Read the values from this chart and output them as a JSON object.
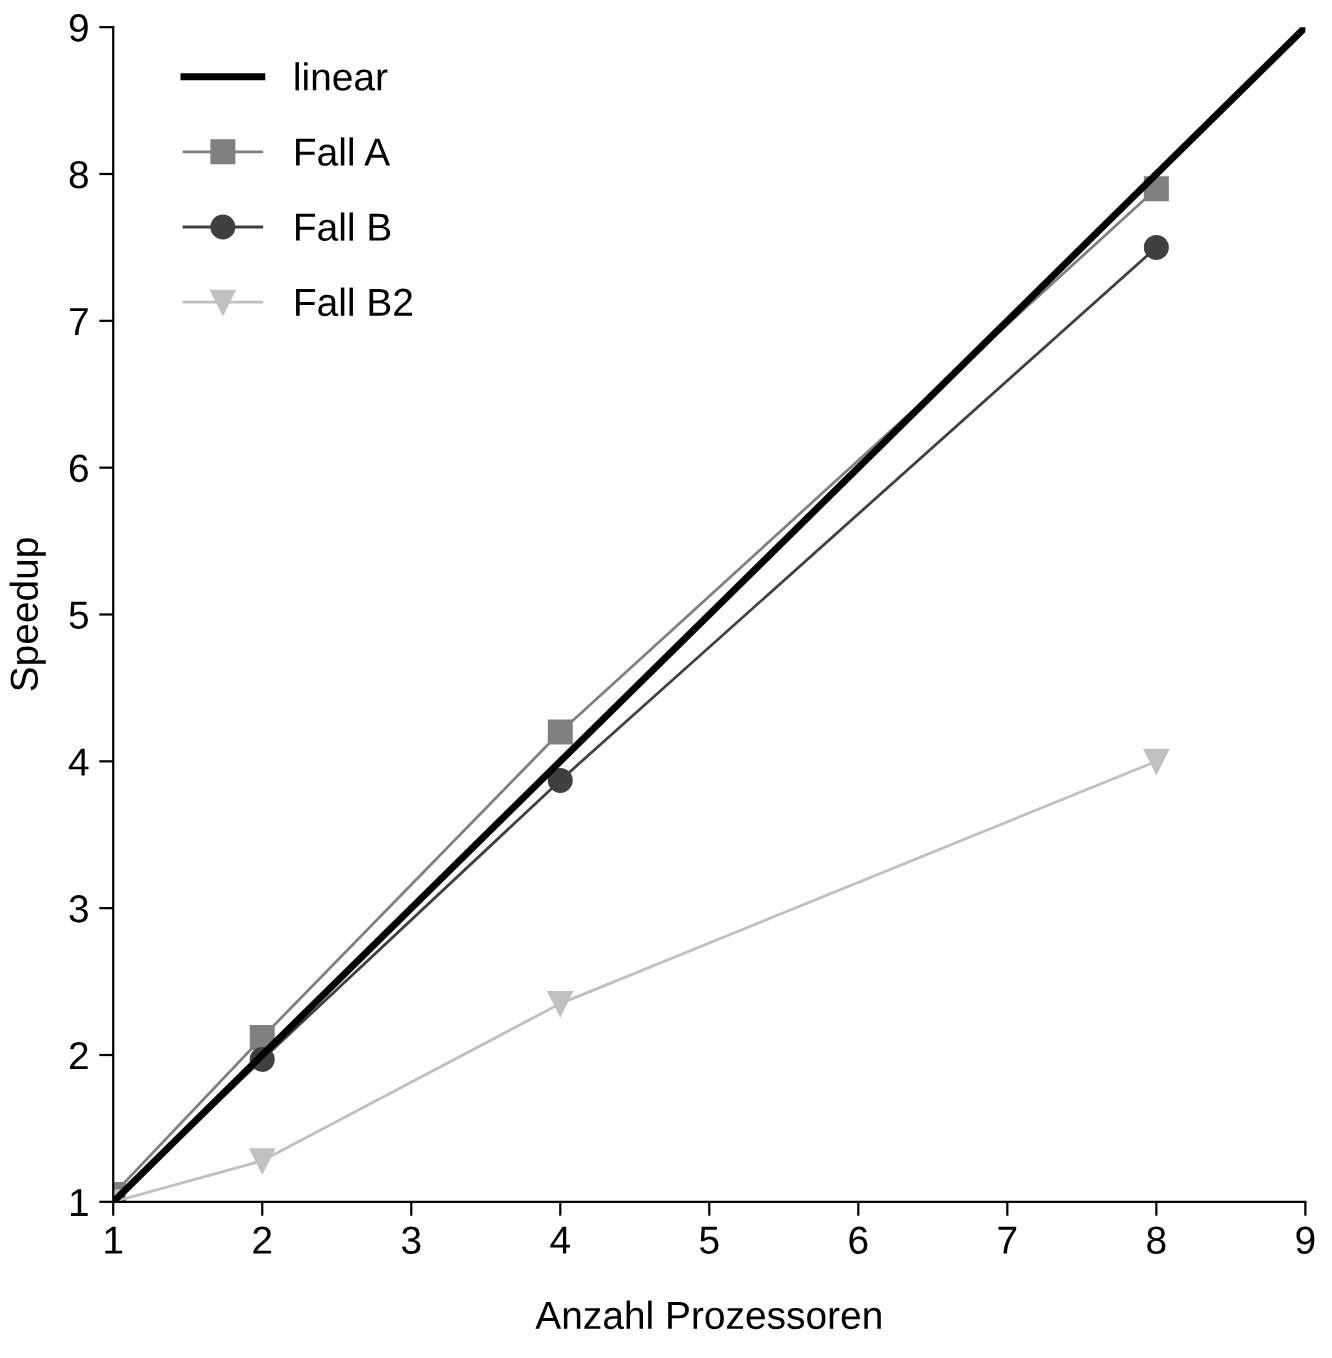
{
  "chart_data": {
    "type": "line",
    "xlabel": "Anzahl Prozessoren",
    "ylabel": "Speedup",
    "xlim": [
      1,
      9
    ],
    "ylim": [
      1,
      9
    ],
    "xticks": [
      1,
      2,
      3,
      4,
      5,
      6,
      7,
      8,
      9
    ],
    "yticks": [
      1,
      2,
      3,
      4,
      5,
      6,
      7,
      8,
      9
    ],
    "grid": false,
    "legend": "top left",
    "series": [
      {
        "name": "linear",
        "color": "#000000",
        "x": [
          1,
          9
        ],
        "values": [
          1,
          9
        ],
        "marker": "none"
      },
      {
        "name": "Fall A",
        "color": "#808080",
        "x": [
          1,
          2,
          4,
          8
        ],
        "values": [
          1.05,
          2.12,
          4.2,
          7.9
        ],
        "marker": "square"
      },
      {
        "name": "Fall B",
        "color": "#404040",
        "x": [
          1,
          2,
          4,
          8
        ],
        "values": [
          1.0,
          1.97,
          3.87,
          7.5
        ],
        "marker": "circle"
      },
      {
        "name": "Fall B2",
        "color": "#c0c0c0",
        "x": [
          1,
          2,
          4,
          8
        ],
        "values": [
          1.0,
          1.28,
          2.35,
          4.0
        ],
        "marker": "triangle"
      }
    ]
  }
}
